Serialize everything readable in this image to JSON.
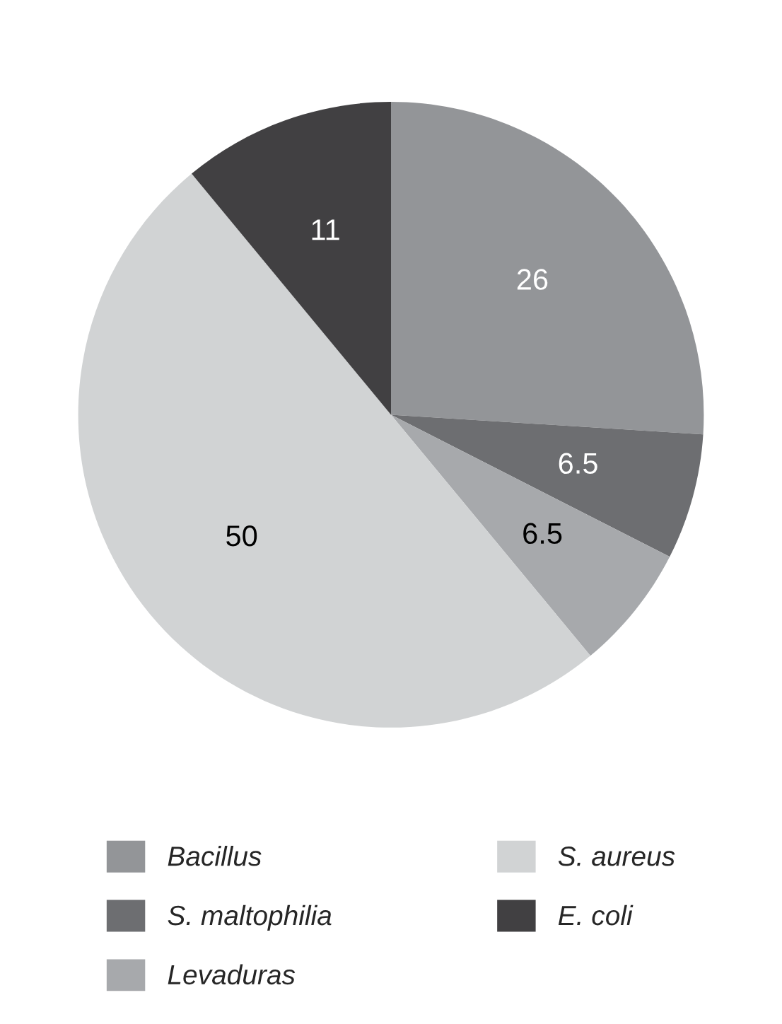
{
  "chart_data": {
    "type": "pie",
    "categories": [
      "Bacillus",
      "S. maltophilia",
      "Levaduras",
      "S. aureus",
      "E. coli"
    ],
    "values": [
      26,
      6.5,
      6.5,
      50,
      11
    ],
    "colors": [
      "#939598",
      "#6d6e71",
      "#a7a9ac",
      "#d1d3d4",
      "#414042"
    ],
    "data_labels": true,
    "legend": "bottom"
  }
}
